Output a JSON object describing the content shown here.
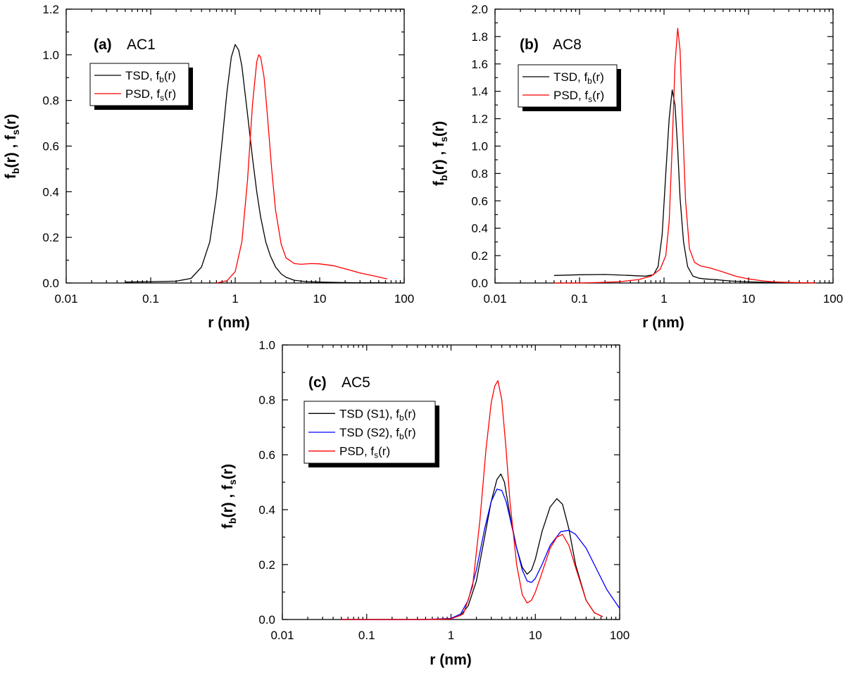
{
  "chart_data": [
    {
      "id": "a",
      "type": "line",
      "panel_letter": "(a)",
      "panel_name": "AC1",
      "xlabel": "r (nm)",
      "ylabel": {
        "parts": [
          "f",
          "b",
          "(r) , f",
          "s",
          "(r)"
        ]
      },
      "xscale": "log",
      "xlim": [
        0.01,
        100
      ],
      "ylim": [
        0,
        1.2
      ],
      "xticks": [
        0.01,
        0.1,
        1,
        10,
        100
      ],
      "xtick_labels": [
        "0.01",
        "0.1",
        "1",
        "10",
        "100"
      ],
      "yticks": [
        0,
        0.2,
        0.4,
        0.6,
        0.8,
        1.0,
        1.2
      ],
      "ytick_labels": [
        "0.0",
        "0.2",
        "0.4",
        "0.6",
        "0.8",
        "1.0",
        "1.2"
      ],
      "legend_position": "upper-left",
      "series": [
        {
          "name": "TSD, f_b(r)",
          "label_main": "TSD, f",
          "label_sub": "b",
          "label_end": "(r)",
          "color": "#000000",
          "x": [
            0.05,
            0.1,
            0.2,
            0.3,
            0.4,
            0.5,
            0.6,
            0.7,
            0.8,
            0.9,
            1.0,
            1.1,
            1.2,
            1.4,
            1.6,
            1.8,
            2.0,
            2.3,
            2.6,
            3.0,
            3.5,
            4.0,
            5.0,
            7.0,
            10,
            20,
            30,
            63
          ],
          "y": [
            0.004,
            0.006,
            0.008,
            0.02,
            0.07,
            0.18,
            0.38,
            0.62,
            0.84,
            0.99,
            1.045,
            1.02,
            0.95,
            0.74,
            0.55,
            0.4,
            0.29,
            0.18,
            0.12,
            0.07,
            0.04,
            0.025,
            0.012,
            0.006,
            0.004,
            0.002,
            0.001,
            0.001
          ]
        },
        {
          "name": "PSD, f_s(r)",
          "label_main": "PSD, f",
          "label_sub": "s",
          "label_end": "(r)",
          "color": "#ff0000",
          "x": [
            0.6,
            0.8,
            1.0,
            1.2,
            1.4,
            1.6,
            1.8,
            1.9,
            2.0,
            2.2,
            2.4,
            2.7,
            3.0,
            3.5,
            4.0,
            5.0,
            6.0,
            8.0,
            10,
            15,
            20,
            30,
            45,
            63
          ],
          "y": [
            0.0,
            0.01,
            0.05,
            0.18,
            0.45,
            0.78,
            0.97,
            1.0,
            0.99,
            0.9,
            0.74,
            0.5,
            0.32,
            0.17,
            0.11,
            0.085,
            0.082,
            0.085,
            0.084,
            0.075,
            0.062,
            0.044,
            0.03,
            0.018
          ]
        }
      ]
    },
    {
      "id": "b",
      "type": "line",
      "panel_letter": "(b)",
      "panel_name": "AC8",
      "xlabel": "r (nm)",
      "ylabel": {
        "parts": [
          "f",
          "b",
          "(r) , f",
          "s",
          "(r)"
        ]
      },
      "xscale": "log",
      "xlim": [
        0.01,
        100
      ],
      "ylim": [
        0,
        2.0
      ],
      "xticks": [
        0.01,
        0.1,
        1,
        10,
        100
      ],
      "xtick_labels": [
        "0.01",
        "0.1",
        "1",
        "10",
        "100"
      ],
      "yticks": [
        0,
        0.2,
        0.4,
        0.6,
        0.8,
        1.0,
        1.2,
        1.4,
        1.6,
        1.8,
        2.0
      ],
      "ytick_labels": [
        "0.0",
        "0.2",
        "0.4",
        "0.6",
        "0.8",
        "1.0",
        "1.2",
        "1.4",
        "1.6",
        "1.8",
        "2.0"
      ],
      "legend_position": "upper-left",
      "series": [
        {
          "name": "TSD, f_b(r)",
          "label_main": "TSD, f",
          "label_sub": "b",
          "label_end": "(r)",
          "color": "#000000",
          "x": [
            0.05,
            0.1,
            0.2,
            0.4,
            0.6,
            0.75,
            0.85,
            0.95,
            1.05,
            1.15,
            1.25,
            1.35,
            1.45,
            1.55,
            1.7,
            1.9,
            2.2,
            2.6,
            3.0,
            4.0,
            6.0,
            10,
            20,
            40
          ],
          "y": [
            0.055,
            0.06,
            0.062,
            0.055,
            0.05,
            0.06,
            0.12,
            0.35,
            0.8,
            1.2,
            1.41,
            1.3,
            0.98,
            0.62,
            0.3,
            0.12,
            0.05,
            0.035,
            0.03,
            0.025,
            0.015,
            0.008,
            0.003,
            0.001
          ]
        },
        {
          "name": "PSD, f_s(r)",
          "label_main": "PSD, f",
          "label_sub": "s",
          "label_end": "(r)",
          "color": "#ff0000",
          "x": [
            0.05,
            0.1,
            0.2,
            0.3,
            0.5,
            0.7,
            0.9,
            1.05,
            1.15,
            1.25,
            1.35,
            1.45,
            1.55,
            1.65,
            1.8,
            2.0,
            2.3,
            2.7,
            3.5,
            5.0,
            7.0,
            10,
            15,
            20,
            30,
            45,
            63
          ],
          "y": [
            0.0,
            0.0,
            0.005,
            0.01,
            0.025,
            0.05,
            0.1,
            0.2,
            0.45,
            1.0,
            1.6,
            1.86,
            1.7,
            1.2,
            0.6,
            0.25,
            0.15,
            0.125,
            0.11,
            0.08,
            0.05,
            0.03,
            0.015,
            0.008,
            0.004,
            0.002,
            0.001
          ]
        }
      ]
    },
    {
      "id": "c",
      "type": "line",
      "panel_letter": "(c)",
      "panel_name": "AC5",
      "xlabel": "r (nm)",
      "ylabel": {
        "parts": [
          "f",
          "b",
          "(r) , f",
          "s",
          "(r)"
        ]
      },
      "xscale": "log",
      "xlim": [
        0.01,
        100
      ],
      "ylim": [
        0,
        1.0
      ],
      "xticks": [
        0.01,
        0.1,
        1,
        10,
        100
      ],
      "xtick_labels": [
        "0.01",
        "0.1",
        "1",
        "10",
        "100"
      ],
      "yticks": [
        0,
        0.2,
        0.4,
        0.6,
        0.8,
        1.0
      ],
      "ytick_labels": [
        "0.0",
        "0.2",
        "0.4",
        "0.6",
        "0.8",
        "1.0"
      ],
      "legend_position": "upper-left",
      "series": [
        {
          "name": "TSD (S1), f_b(r)",
          "label_main": "TSD (S1), f",
          "label_sub": "b",
          "label_end": "(r)",
          "color": "#000000",
          "x": [
            0.05,
            0.5,
            1.0,
            1.3,
            1.6,
            2.0,
            2.5,
            3.0,
            3.5,
            3.9,
            4.3,
            5.0,
            6.0,
            7.0,
            8.0,
            9.0,
            10,
            12,
            15,
            18,
            21,
            25,
            30,
            40,
            50,
            63
          ],
          "y": [
            0.0,
            0.0,
            0.003,
            0.015,
            0.05,
            0.14,
            0.3,
            0.43,
            0.51,
            0.53,
            0.5,
            0.38,
            0.26,
            0.19,
            0.165,
            0.18,
            0.22,
            0.32,
            0.41,
            0.44,
            0.42,
            0.33,
            0.2,
            0.07,
            0.025,
            0.01
          ]
        },
        {
          "name": "TSD (S2), f_b(r)",
          "label_main": "TSD (S2), f",
          "label_sub": "b",
          "label_end": "(r)",
          "color": "#0000ff",
          "x": [
            0.05,
            0.5,
            1.0,
            1.3,
            1.6,
            2.0,
            2.5,
            3.0,
            3.5,
            4.0,
            4.5,
            5.0,
            6.0,
            7.0,
            8.0,
            9.0,
            10,
            12,
            15,
            20,
            25,
            30,
            40,
            50,
            70,
            100
          ],
          "y": [
            0.0,
            0.0,
            0.004,
            0.02,
            0.07,
            0.18,
            0.33,
            0.43,
            0.475,
            0.47,
            0.43,
            0.37,
            0.26,
            0.18,
            0.14,
            0.135,
            0.15,
            0.2,
            0.27,
            0.32,
            0.325,
            0.31,
            0.26,
            0.2,
            0.11,
            0.04
          ]
        },
        {
          "name": "PSD, f_s(r)",
          "label_main": "PSD, f",
          "label_sub": "s",
          "label_end": "(r)",
          "color": "#ff0000",
          "x": [
            0.05,
            0.5,
            1.0,
            1.4,
            1.8,
            2.2,
            2.6,
            3.0,
            3.3,
            3.6,
            4.0,
            4.5,
            5.0,
            6.0,
            7.0,
            8.0,
            9.0,
            10,
            12,
            15,
            18,
            21,
            25,
            30,
            40,
            50,
            63
          ],
          "y": [
            0.0,
            0.0,
            0.002,
            0.02,
            0.12,
            0.36,
            0.62,
            0.79,
            0.85,
            0.87,
            0.8,
            0.62,
            0.43,
            0.2,
            0.09,
            0.06,
            0.07,
            0.1,
            0.17,
            0.26,
            0.3,
            0.31,
            0.27,
            0.19,
            0.07,
            0.025,
            0.01
          ]
        }
      ]
    }
  ]
}
